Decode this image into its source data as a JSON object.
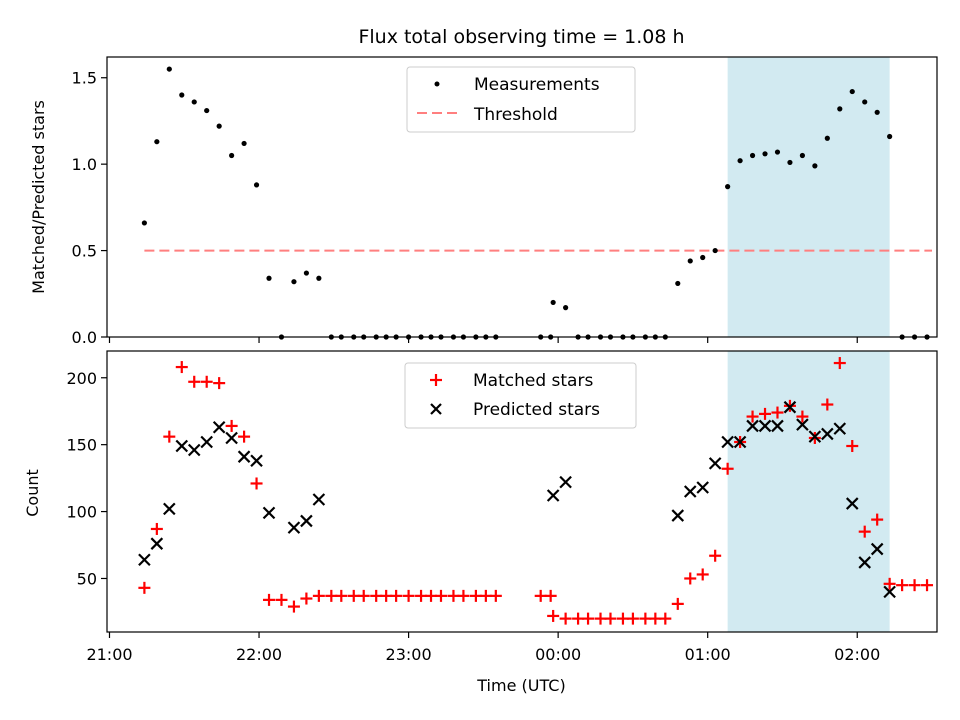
{
  "figure": {
    "title": "Flux total observing time = 1.08 h",
    "xlabel": "Time (UTC)"
  },
  "colors": {
    "shade": "#add8e6",
    "threshold": "#ff7f7f",
    "measurement": "#000000",
    "matched": "#ff0000",
    "predicted": "#000000"
  },
  "chart_data": [
    {
      "type": "scatter",
      "name": "ratio-panel",
      "ylabel": "Matched/Predicted stars",
      "xlim": [
        "20:59",
        "02:32"
      ],
      "ylim": [
        0,
        1.62
      ],
      "yticks": [
        0.0,
        0.5,
        1.0,
        1.5
      ],
      "ytick_labels": [
        "0.0",
        "0.5",
        "1.0",
        "1.5"
      ],
      "shaded_interval": [
        "01:08",
        "02:13"
      ],
      "threshold": {
        "label": "Threshold",
        "value": 0.5,
        "x_range": [
          "21:14",
          "02:30"
        ],
        "style": "dashed"
      },
      "legend": {
        "position": "upper center",
        "entries": [
          "Measurements",
          "Threshold"
        ]
      },
      "series": [
        {
          "name": "Measurements",
          "marker": "dot",
          "x": [
            "21:14",
            "21:19",
            "21:24",
            "21:29",
            "21:34",
            "21:39",
            "21:44",
            "21:49",
            "21:54",
            "21:59",
            "22:04",
            "22:09",
            "22:14",
            "22:19",
            "22:24",
            "22:29",
            "22:33",
            "22:38",
            "22:42",
            "22:47",
            "22:51",
            "22:55",
            "23:00",
            "23:05",
            "23:09",
            "23:13",
            "23:18",
            "23:22",
            "23:27",
            "23:31",
            "23:35",
            "23:53",
            "23:57",
            "23:58",
            "00:03",
            "00:08",
            "00:12",
            "00:17",
            "00:21",
            "00:26",
            "00:30",
            "00:35",
            "00:39",
            "00:43",
            "00:48",
            "00:53",
            "00:58",
            "01:03",
            "01:08",
            "01:13",
            "01:18",
            "01:23",
            "01:28",
            "01:33",
            "01:38",
            "01:43",
            "01:48",
            "01:53",
            "01:58",
            "02:03",
            "02:08",
            "02:13",
            "02:18",
            "02:23",
            "02:28"
          ],
          "y": [
            0.66,
            1.13,
            1.55,
            1.4,
            1.36,
            1.31,
            1.22,
            1.05,
            1.12,
            0.88,
            0.34,
            0.0,
            0.32,
            0.37,
            0.34,
            0.0,
            0.0,
            0.0,
            0.0,
            0.0,
            0.0,
            0.0,
            0.0,
            0.0,
            0.0,
            0.0,
            0.0,
            0.0,
            0.0,
            0.0,
            0.0,
            0.0,
            0.0,
            0.2,
            0.17,
            0.0,
            0.0,
            0.0,
            0.0,
            0.0,
            0.0,
            0.0,
            0.0,
            0.0,
            0.31,
            0.44,
            0.46,
            0.5,
            0.87,
            1.02,
            1.05,
            1.06,
            1.07,
            1.01,
            1.05,
            0.99,
            1.15,
            1.32,
            1.42,
            1.36,
            1.3,
            1.16,
            0.0,
            0.0,
            0.0
          ]
        }
      ]
    },
    {
      "type": "scatter",
      "name": "count-panel",
      "ylabel": "Count",
      "xlim": [
        "20:59",
        "02:32"
      ],
      "ylim": [
        10,
        220
      ],
      "yticks": [
        50,
        100,
        150,
        200
      ],
      "ytick_labels": [
        "50",
        "100",
        "150",
        "200"
      ],
      "xticks": [
        "21:00",
        "22:00",
        "23:00",
        "00:00",
        "01:00",
        "02:00"
      ],
      "xtick_labels": [
        "21:00",
        "22:00",
        "23:00",
        "00:00",
        "01:00",
        "02:00"
      ],
      "shaded_interval": [
        "01:08",
        "02:13"
      ],
      "legend": {
        "position": "upper center",
        "entries": [
          "Matched stars",
          "Predicted stars"
        ]
      },
      "series": [
        {
          "name": "Matched stars",
          "marker": "plus",
          "x": [
            "21:14",
            "21:19",
            "21:24",
            "21:29",
            "21:34",
            "21:39",
            "21:44",
            "21:49",
            "21:54",
            "21:59",
            "22:04",
            "22:09",
            "22:14",
            "22:19",
            "22:24",
            "22:29",
            "22:33",
            "22:38",
            "22:42",
            "22:47",
            "22:51",
            "22:55",
            "23:00",
            "23:05",
            "23:09",
            "23:13",
            "23:18",
            "23:22",
            "23:27",
            "23:31",
            "23:35",
            "23:53",
            "23:57",
            "23:58",
            "00:03",
            "00:08",
            "00:12",
            "00:17",
            "00:21",
            "00:26",
            "00:30",
            "00:35",
            "00:39",
            "00:43",
            "00:48",
            "00:53",
            "00:58",
            "01:03",
            "01:08",
            "01:13",
            "01:18",
            "01:23",
            "01:28",
            "01:33",
            "01:38",
            "01:43",
            "01:48",
            "01:53",
            "01:58",
            "02:03",
            "02:08",
            "02:13",
            "02:18",
            "02:23",
            "02:28"
          ],
          "y": [
            43,
            87,
            156,
            208,
            197,
            197,
            196,
            164,
            156,
            121,
            34,
            34,
            29,
            35,
            37,
            37,
            37,
            37,
            37,
            37,
            37,
            37,
            37,
            37,
            37,
            37,
            37,
            37,
            37,
            37,
            37,
            37,
            37,
            22,
            20,
            20,
            20,
            20,
            20,
            20,
            20,
            20,
            20,
            20,
            31,
            50,
            53,
            67,
            132,
            152,
            171,
            173,
            174,
            179,
            171,
            155,
            180,
            211,
            149,
            85,
            94,
            46,
            45,
            45,
            45
          ]
        },
        {
          "name": "Predicted stars",
          "marker": "x",
          "x": [
            "21:14",
            "21:19",
            "21:24",
            "21:29",
            "21:34",
            "21:39",
            "21:44",
            "21:49",
            "21:54",
            "21:59",
            "22:04",
            "22:14",
            "22:19",
            "22:24",
            "23:58",
            "00:03",
            "00:48",
            "00:53",
            "00:58",
            "01:03",
            "01:08",
            "01:13",
            "01:18",
            "01:23",
            "01:28",
            "01:33",
            "01:38",
            "01:43",
            "01:48",
            "01:53",
            "01:58",
            "02:03",
            "02:08",
            "02:13"
          ],
          "y": [
            64,
            76,
            102,
            149,
            146,
            152,
            163,
            155,
            141,
            138,
            99,
            88,
            93,
            109,
            112,
            122,
            97,
            115,
            118,
            136,
            152,
            152,
            164,
            164,
            164,
            178,
            165,
            156,
            158,
            162,
            106,
            62,
            72,
            40
          ]
        }
      ]
    }
  ]
}
